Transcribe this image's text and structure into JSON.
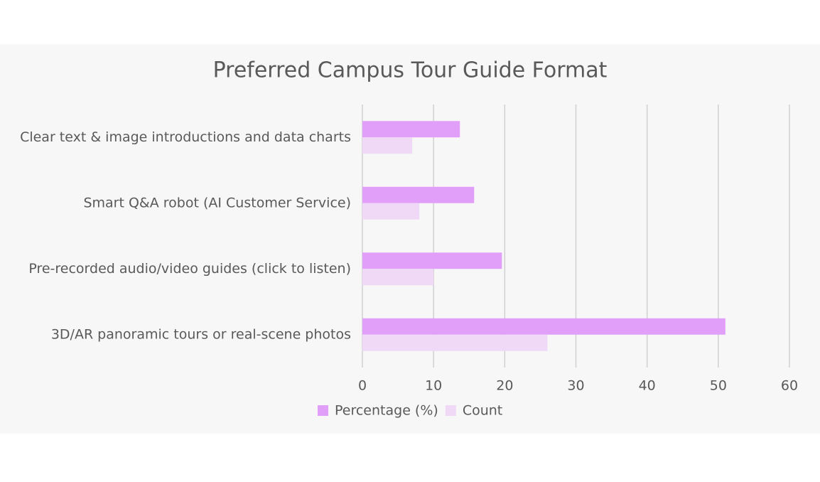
{
  "chart_data": {
    "type": "bar",
    "orientation": "horizontal",
    "title": "Preferred Campus Tour Guide Format",
    "categories": [
      "Clear text & image introductions and data charts",
      "Smart Q&A robot (AI Customer Service)",
      "Pre-recorded audio/video guides (click to listen)",
      "3D/AR panoramic tours or real-scene photos"
    ],
    "series": [
      {
        "name": "Percentage (%)",
        "color": "#e29ffa",
        "values": [
          13.7,
          15.7,
          19.6,
          51.0
        ]
      },
      {
        "name": "Count",
        "color": "#f0d9f7",
        "values": [
          7,
          8,
          10,
          26
        ]
      }
    ],
    "xlim": [
      0,
      60
    ],
    "xticks": [
      0,
      10,
      20,
      30,
      40,
      50,
      60
    ],
    "grid": true,
    "legend": "bottom"
  }
}
